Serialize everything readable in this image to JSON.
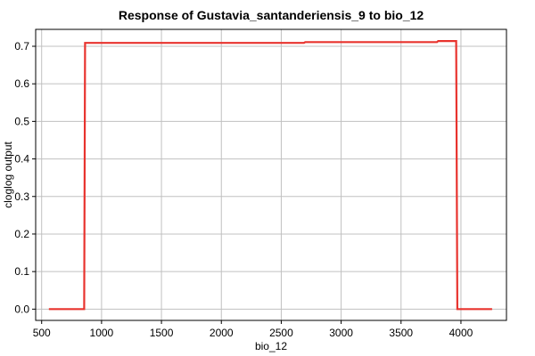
{
  "chart_data": {
    "type": "line",
    "title": "Response of Gustavia_santanderiensis_9 to bio_12",
    "xlabel": "bio_12",
    "ylabel": "cloglog output",
    "xlim": [
      450,
      4380
    ],
    "ylim": [
      -0.03,
      0.745
    ],
    "xticks": [
      500,
      1000,
      1500,
      2000,
      2500,
      3000,
      3500,
      4000
    ],
    "yticks": [
      0.0,
      0.1,
      0.2,
      0.3,
      0.4,
      0.5,
      0.6,
      0.7
    ],
    "ytick_labels": [
      "0.0",
      "0.1",
      "0.2",
      "0.3",
      "0.4",
      "0.5",
      "0.6",
      "0.7"
    ],
    "grid": true,
    "series": [
      {
        "color": "#e8332e",
        "x": [
          560,
          855,
          862,
          1500,
          2000,
          2690,
          2700,
          3000,
          3500,
          3800,
          3810,
          3960,
          3970,
          4260
        ],
        "y": [
          0.0,
          0.0,
          0.709,
          0.709,
          0.709,
          0.709,
          0.711,
          0.711,
          0.711,
          0.711,
          0.714,
          0.714,
          0.0,
          0.0
        ]
      }
    ]
  }
}
